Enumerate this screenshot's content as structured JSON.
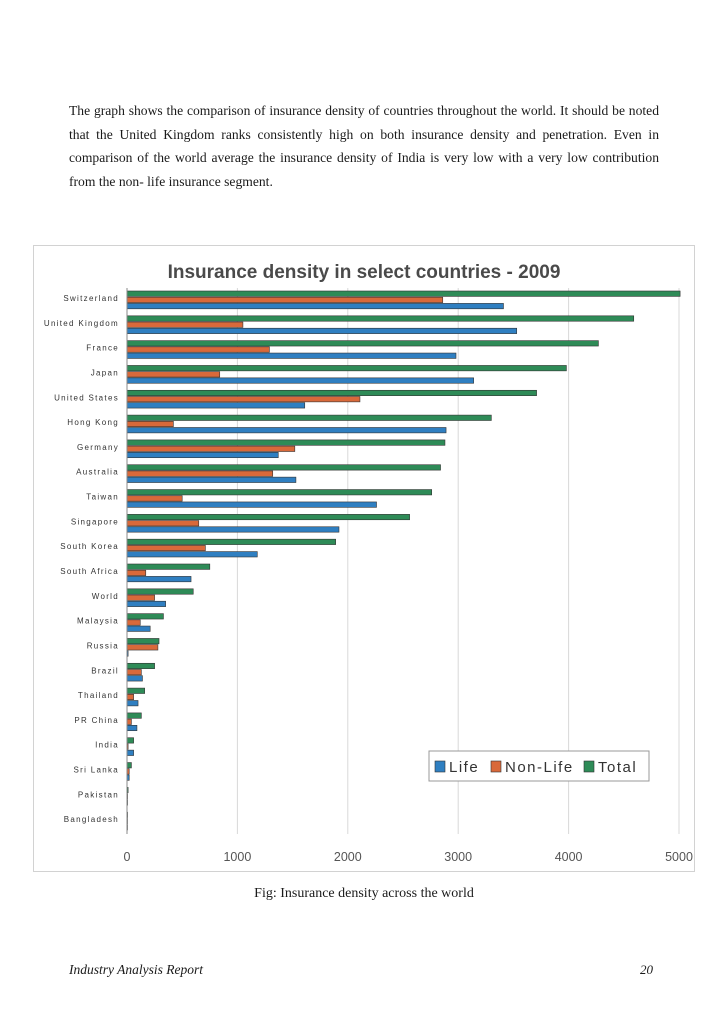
{
  "text": {
    "paragraph": "The graph shows the comparison of insurance density of countries throughout the world. It should be noted that the United Kingdom ranks consistently high on both insurance density and penetration. Even in comparison of the world average the insurance density of India is very low with a very low contribution from the non- life insurance segment.",
    "caption": "Fig: Insurance density across the world",
    "footer_left": "Industry Analysis Report",
    "footer_right": "20"
  },
  "chart_data": {
    "type": "bar",
    "orientation": "horizontal",
    "title": "Insurance density in select countries - 2009",
    "xlabel": "",
    "ylabel": "",
    "xlim": [
      0,
      5000
    ],
    "xticks": [
      0,
      1000,
      2000,
      3000,
      4000,
      5000
    ],
    "grid": true,
    "legend_position": "bottom-right",
    "categories": [
      "Switzerland",
      "United Kingdom",
      "France",
      "Japan",
      "United States",
      "Hong Kong",
      "Germany",
      "Australia",
      "Taiwan",
      "Singapore",
      "South Korea",
      "South Africa",
      "World",
      "Malaysia",
      "Russia",
      "Brazil",
      "Thailand",
      "PR China",
      "India",
      "Sri Lanka",
      "Pakistan",
      "Bangladesh"
    ],
    "series": [
      {
        "name": "Total",
        "color": "#2e8b57",
        "values": [
          5010,
          4590,
          4270,
          3980,
          3710,
          3300,
          2880,
          2840,
          2760,
          2560,
          1890,
          750,
          600,
          330,
          290,
          250,
          160,
          130,
          60,
          40,
          10,
          5
        ]
      },
      {
        "name": "Non-Life",
        "color": "#d9693a",
        "values": [
          2860,
          1050,
          1290,
          840,
          2110,
          420,
          1520,
          1320,
          500,
          650,
          710,
          170,
          250,
          120,
          280,
          130,
          60,
          40,
          10,
          20,
          5,
          3
        ]
      },
      {
        "name": "Life",
        "color": "#2f7fc1",
        "values": [
          3410,
          3530,
          2980,
          3140,
          1610,
          2890,
          1370,
          1530,
          2260,
          1920,
          1180,
          580,
          350,
          210,
          10,
          140,
          100,
          90,
          60,
          20,
          5,
          3
        ]
      }
    ],
    "legend": [
      "Life",
      "Non-Life",
      "Total"
    ]
  }
}
